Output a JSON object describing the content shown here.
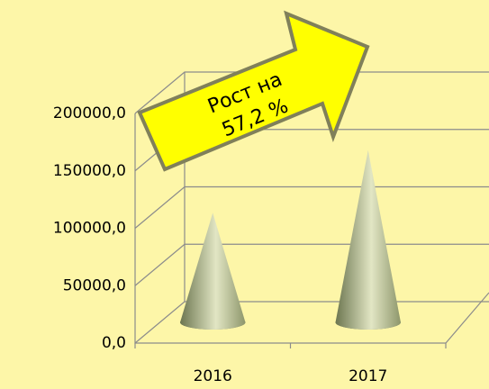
{
  "chart_data": {
    "type": "cone",
    "categories": [
      "2016",
      "2017"
    ],
    "values": [
      95400,
      150000
    ],
    "color": "#b7bf95",
    "ylim": [
      0,
      200000
    ],
    "yticks": [
      {
        "value": 0,
        "label": "0,0"
      },
      {
        "value": 50000,
        "label": "50000,0"
      },
      {
        "value": 100000,
        "label": "100000,0"
      },
      {
        "value": 150000,
        "label": "150000,0"
      },
      {
        "value": 200000,
        "label": "200000,0"
      }
    ],
    "grid": true,
    "annotation": {
      "lines": [
        "Рост на",
        "57,2 %"
      ],
      "color": "#ffff00"
    }
  }
}
